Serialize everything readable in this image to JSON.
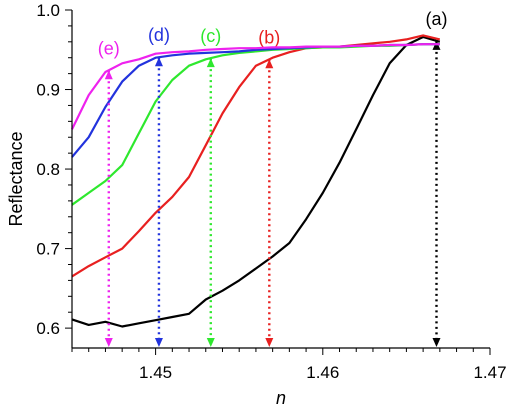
{
  "chart_data": {
    "type": "line",
    "title": "",
    "xlabel": "n",
    "ylabel": "Reflectance",
    "xlim": [
      1.445,
      1.47
    ],
    "ylim": [
      0.575,
      1.0
    ],
    "xticks": [
      1.45,
      1.46,
      1.47
    ],
    "xtick_labels": [
      "1.45",
      "1.46",
      "1.47"
    ],
    "yticks": [
      0.6,
      0.7,
      0.8,
      0.9,
      1.0
    ],
    "ytick_labels": [
      "0.6",
      "0.7",
      "0.8",
      "0.9",
      "1.0"
    ],
    "grid": false,
    "legend": "none",
    "series": [
      {
        "name": "(a)",
        "color": "#000000",
        "x": [
          1.445,
          1.446,
          1.447,
          1.448,
          1.449,
          1.45,
          1.451,
          1.452,
          1.453,
          1.454,
          1.455,
          1.456,
          1.457,
          1.458,
          1.459,
          1.46,
          1.461,
          1.462,
          1.463,
          1.464,
          1.465,
          1.466,
          1.467
        ],
        "y": [
          0.611,
          0.604,
          0.608,
          0.602,
          0.606,
          0.61,
          0.614,
          0.618,
          0.636,
          0.647,
          0.66,
          0.675,
          0.69,
          0.707,
          0.737,
          0.77,
          0.808,
          0.85,
          0.893,
          0.933,
          0.956,
          0.966,
          0.96
        ],
        "marker_x": 1.4668
      },
      {
        "name": "(b)",
        "color": "#e82020",
        "x": [
          1.445,
          1.446,
          1.447,
          1.448,
          1.449,
          1.45,
          1.451,
          1.452,
          1.453,
          1.454,
          1.455,
          1.456,
          1.457,
          1.458,
          1.459,
          1.46,
          1.461,
          1.462,
          1.463,
          1.464,
          1.465,
          1.466,
          1.467
        ],
        "y": [
          0.665,
          0.678,
          0.689,
          0.7,
          0.722,
          0.745,
          0.765,
          0.79,
          0.83,
          0.87,
          0.903,
          0.93,
          0.94,
          0.947,
          0.952,
          0.953,
          0.954,
          0.956,
          0.958,
          0.96,
          0.963,
          0.968,
          0.963
        ],
        "marker_x": 1.4568
      },
      {
        "name": "(c)",
        "color": "#2ee82e",
        "x": [
          1.445,
          1.446,
          1.447,
          1.448,
          1.449,
          1.45,
          1.451,
          1.452,
          1.453,
          1.454,
          1.455,
          1.456,
          1.457,
          1.458,
          1.459,
          1.46,
          1.461,
          1.462,
          1.463,
          1.464,
          1.465,
          1.466,
          1.467
        ],
        "y": [
          0.755,
          0.77,
          0.785,
          0.805,
          0.845,
          0.885,
          0.912,
          0.93,
          0.938,
          0.943,
          0.946,
          0.948,
          0.95,
          0.951,
          0.952,
          0.953,
          0.953,
          0.954,
          0.955,
          0.955,
          0.956,
          0.957,
          0.957
        ],
        "marker_x": 1.4533
      },
      {
        "name": "(d)",
        "color": "#2233dd",
        "x": [
          1.445,
          1.446,
          1.447,
          1.448,
          1.449,
          1.45,
          1.451,
          1.452,
          1.453,
          1.454,
          1.455,
          1.456,
          1.457,
          1.458,
          1.459,
          1.46,
          1.461,
          1.462,
          1.463,
          1.464,
          1.465,
          1.466,
          1.467
        ],
        "y": [
          0.815,
          0.84,
          0.878,
          0.91,
          0.93,
          0.94,
          0.943,
          0.945,
          0.946,
          0.947,
          0.948,
          0.95,
          0.951,
          0.952,
          0.953,
          0.954,
          0.954,
          0.955,
          0.955,
          0.956,
          0.956,
          0.957,
          0.957
        ],
        "marker_x": 1.4502
      },
      {
        "name": "(e)",
        "color": "#ee22ee",
        "x": [
          1.445,
          1.446,
          1.447,
          1.448,
          1.449,
          1.45,
          1.451,
          1.452,
          1.453,
          1.454,
          1.455,
          1.456,
          1.457,
          1.458,
          1.459,
          1.46,
          1.461,
          1.462,
          1.463,
          1.464,
          1.465,
          1.466,
          1.467
        ],
        "y": [
          0.85,
          0.893,
          0.922,
          0.933,
          0.938,
          0.945,
          0.947,
          0.948,
          0.95,
          0.951,
          0.952,
          0.952,
          0.953,
          0.953,
          0.954,
          0.954,
          0.954,
          0.955,
          0.955,
          0.956,
          0.956,
          0.957,
          0.957
        ],
        "marker_x": 1.4472
      }
    ]
  }
}
